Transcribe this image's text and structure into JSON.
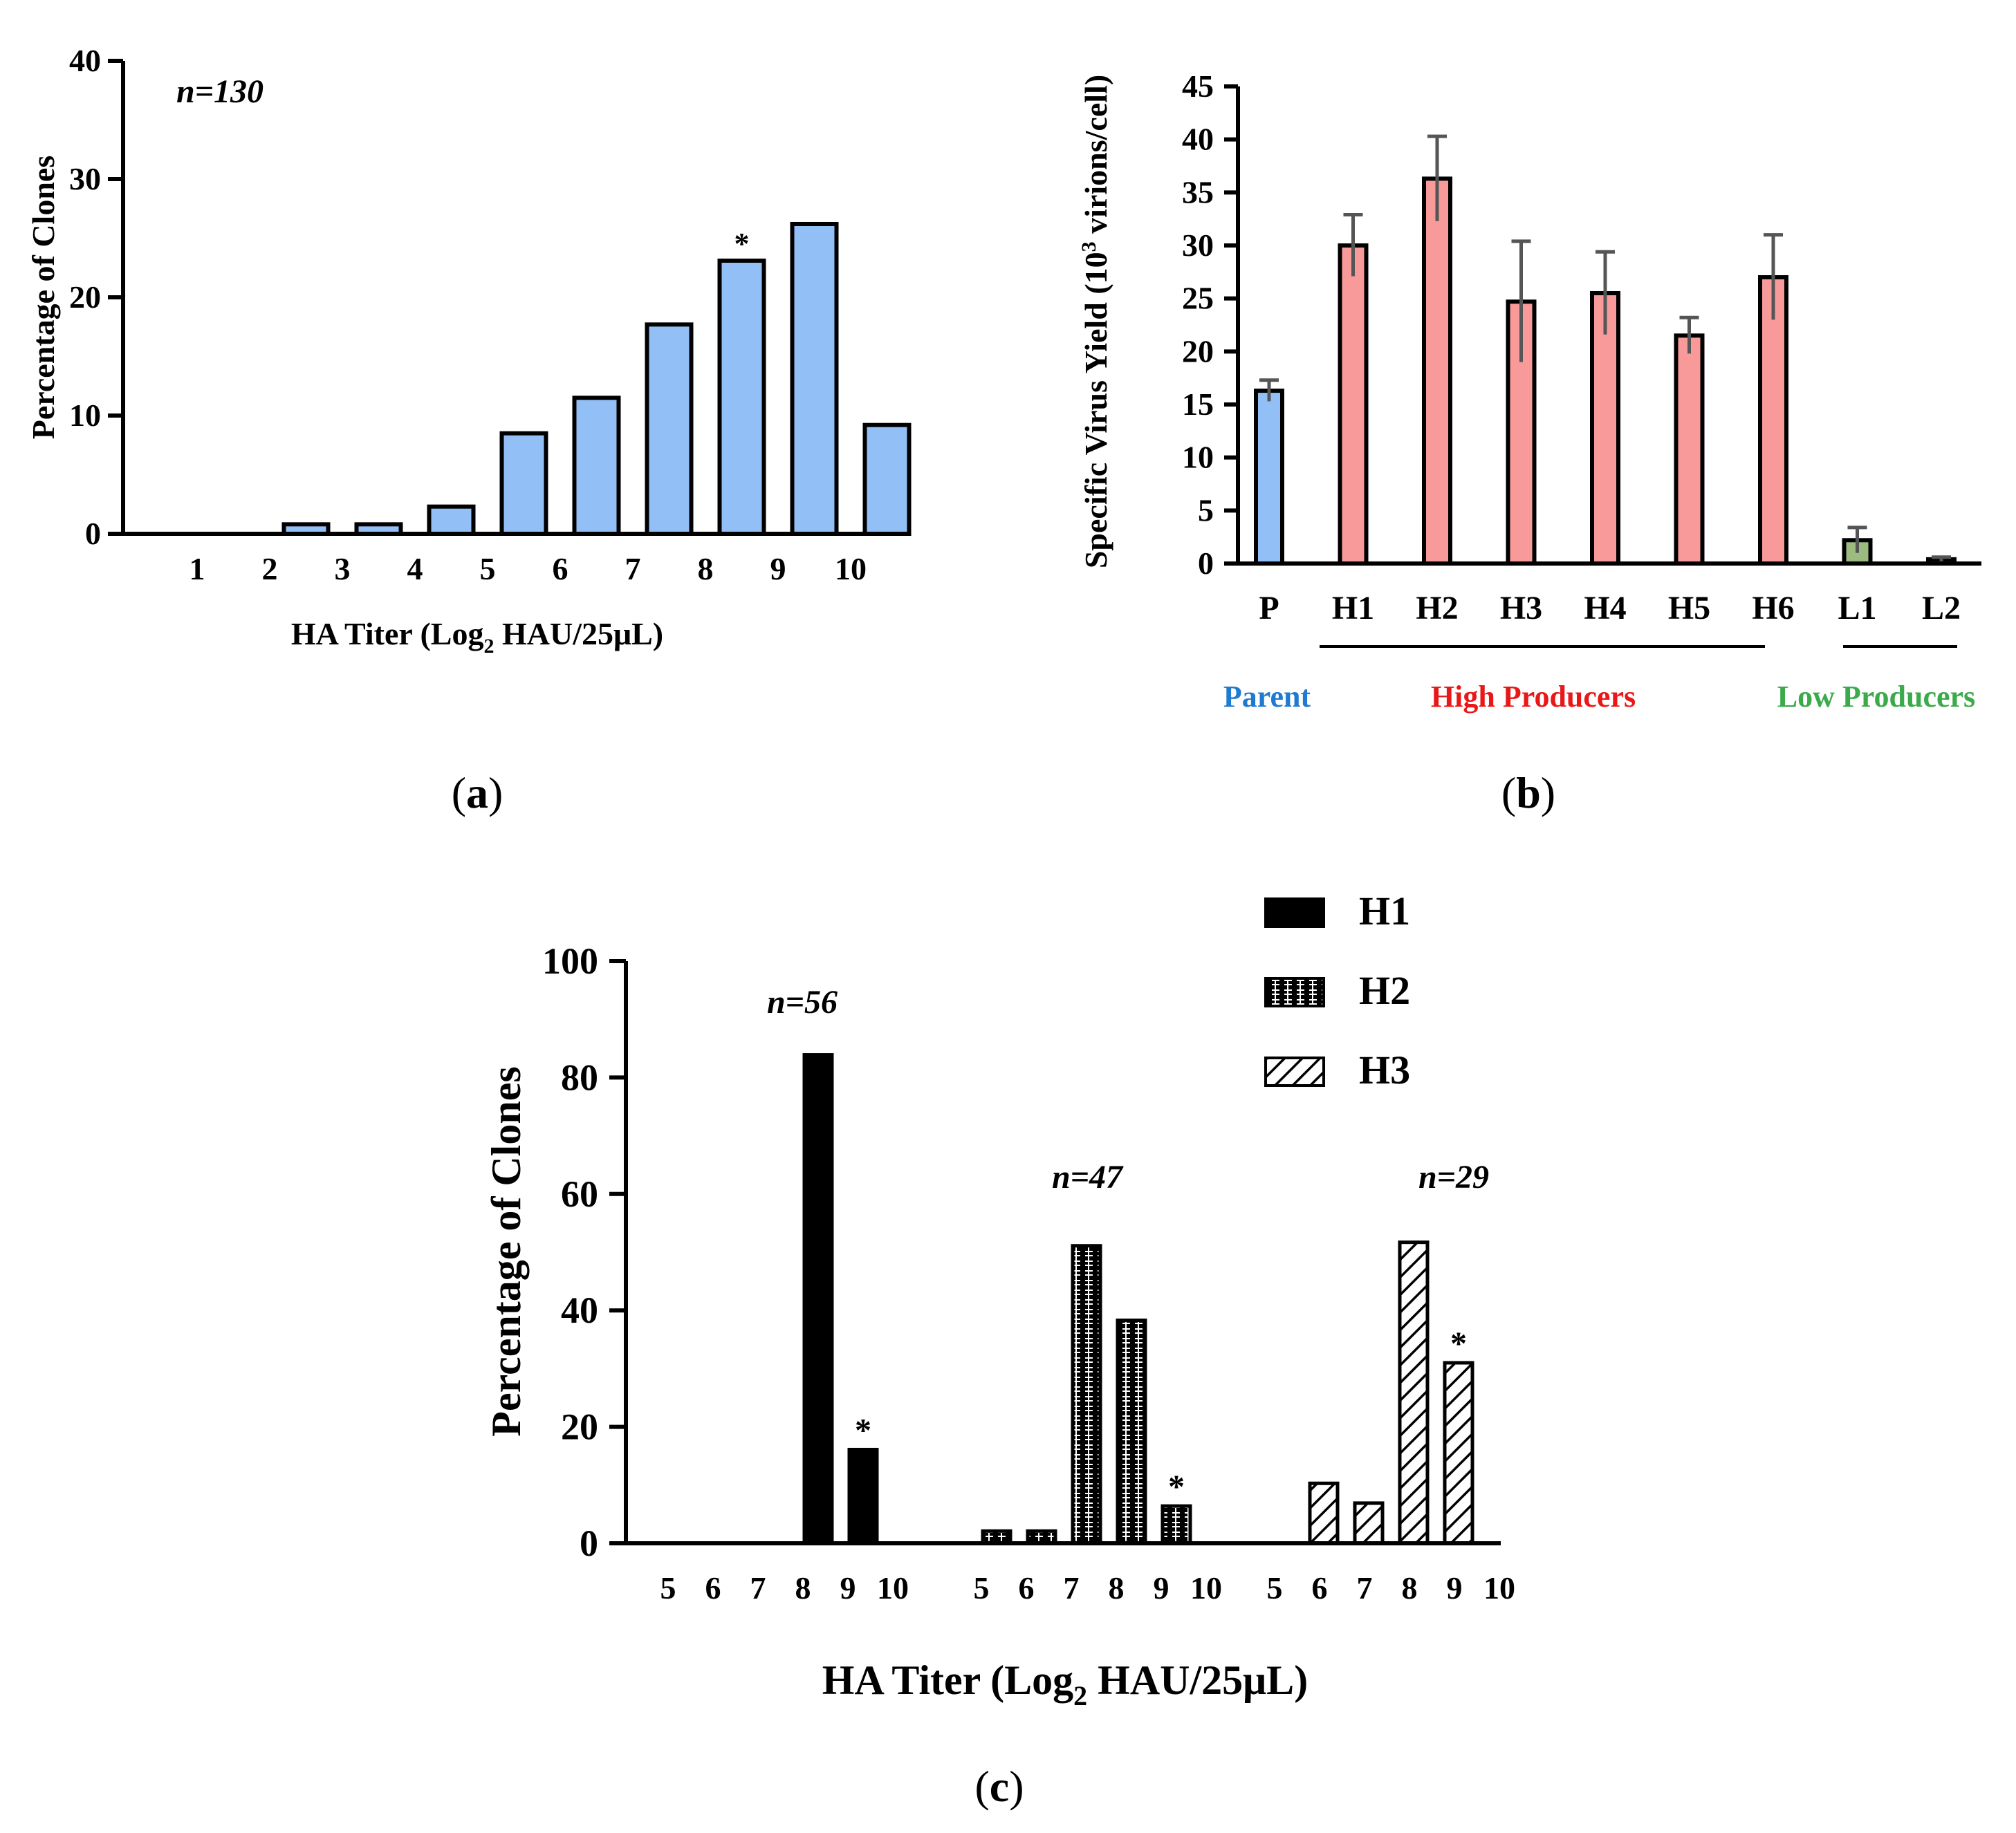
{
  "colors": {
    "parent": "#93bff7",
    "high": "#f99a9a",
    "low": "#9bbb7f",
    "low2": "#7f7f7f",
    "black": "#000000",
    "error": "#555555",
    "label_parent": "#1f7ad0",
    "label_high": "#e81818",
    "label_low": "#3aaa4a"
  },
  "panels": {
    "a": {
      "label_open": "(",
      "label_letter": "a",
      "label_close": ")"
    },
    "b": {
      "label_open": "(",
      "label_letter": "b",
      "label_close": ")"
    },
    "c": {
      "label_open": "(",
      "label_letter": "c",
      "label_close": ")"
    }
  },
  "chart_data": [
    {
      "id": "a",
      "type": "bar",
      "title": "",
      "xlabel_pre": "HA Titer (Log",
      "xlabel_sub": "2",
      "xlabel_post": " HAU/25μL)",
      "ylabel": "Percentage of Clones",
      "annotation": "n=130",
      "categories": [
        "1",
        "2",
        "3",
        "4",
        "5",
        "6",
        "7",
        "8",
        "9",
        "10"
      ],
      "values": [
        0,
        0.8,
        0.8,
        2.3,
        8.5,
        11.5,
        17.7,
        23.1,
        26.2,
        9.2
      ],
      "star_index": 7,
      "star_text": "*",
      "ylim": [
        0,
        40
      ],
      "yticks": [
        "0",
        "10",
        "20",
        "30",
        "40"
      ],
      "color": "#93bff7"
    },
    {
      "id": "b",
      "type": "bar",
      "title": "",
      "xlabel": "",
      "ylabel_pre": "Specific Virus Yield (10",
      "ylabel_sup": "3",
      "ylabel_post": " virions/cell)",
      "categories": [
        "P",
        "H1",
        "H2",
        "H3",
        "H4",
        "H5",
        "H6",
        "L1",
        "L2"
      ],
      "values": [
        16.3,
        30.0,
        36.3,
        24.7,
        25.5,
        21.5,
        27.0,
        2.2,
        0.4
      ],
      "errors": [
        1.0,
        2.9,
        4.0,
        5.7,
        3.9,
        1.7,
        4.0,
        1.2,
        0.2
      ],
      "groups": [
        "parent",
        "high",
        "high",
        "high",
        "high",
        "high",
        "high",
        "low",
        "low2"
      ],
      "group_labels": {
        "parent": "Parent",
        "high": "High Producers",
        "low": "Low Producers"
      },
      "ylim": [
        0,
        45
      ],
      "yticks": [
        "0",
        "5",
        "10",
        "15",
        "20",
        "25",
        "30",
        "35",
        "40",
        "45"
      ]
    },
    {
      "id": "c",
      "type": "bar",
      "title": "",
      "xlabel_pre": "HA Titer (Log",
      "xlabel_sub": "2",
      "xlabel_post": " HAU/25μL)",
      "ylabel": "Percentage of Clones",
      "ylim": [
        0,
        100
      ],
      "yticks": [
        "0",
        "20",
        "40",
        "60",
        "80",
        "100"
      ],
      "categories": [
        "5",
        "6",
        "7",
        "8",
        "9",
        "10"
      ],
      "series": [
        {
          "name": "H1",
          "n_label": "n=56",
          "values": [
            0,
            0,
            0,
            0,
            83.9,
            16.1
          ],
          "star_index": 5
        },
        {
          "name": "H2",
          "n_label": "n=47",
          "values": [
            2.1,
            2.1,
            51.1,
            38.3,
            6.4,
            0
          ],
          "star_index": 4
        },
        {
          "name": "H3",
          "n_label": "n=29",
          "values": [
            0,
            10.3,
            6.9,
            51.7,
            31.0,
            0
          ],
          "star_index": 4
        }
      ],
      "star_text": "*",
      "legend_position": "top-right"
    }
  ]
}
